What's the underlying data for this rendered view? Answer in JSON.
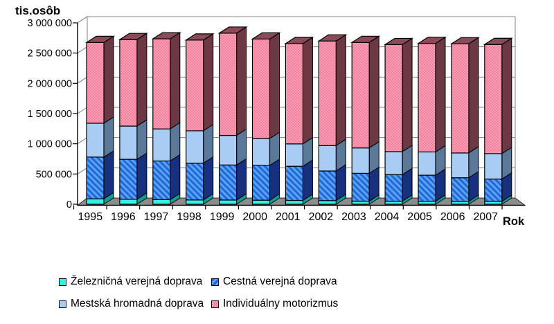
{
  "page": {
    "background": "#FFFFFF"
  },
  "chart_data": {
    "type": "bar",
    "stacked": true,
    "three_d": true,
    "title": "",
    "ylabel": "tis.osôb",
    "xlabel": "Rok",
    "ylim": [
      0,
      3000000
    ],
    "ytick_step": 500000,
    "y_tick_labels": [
      "0",
      "500 000",
      "1 000 000",
      "1 500 000",
      "2 000 000",
      "2 500 000",
      "3 000 000"
    ],
    "categories": [
      "1995",
      "1996",
      "1997",
      "1998",
      "1999",
      "2000",
      "2001",
      "2002",
      "2003",
      "2004",
      "2005",
      "2006",
      "2007"
    ],
    "series": [
      {
        "key": "railway",
        "name": "Železničná verejná doprava",
        "values": [
          90000,
          83000,
          76000,
          70000,
          69000,
          67000,
          63000,
          60000,
          51000,
          50000,
          50000,
          48000,
          47000
        ]
      },
      {
        "key": "bus",
        "name": "Cestná verejná doprava",
        "values": [
          690000,
          660000,
          640000,
          610000,
          580000,
          575000,
          565000,
          490000,
          460000,
          440000,
          430000,
          390000,
          370000
        ]
      },
      {
        "key": "urban",
        "name": "Mestská hromadná doprava",
        "values": [
          560000,
          550000,
          530000,
          535000,
          490000,
          445000,
          370000,
          420000,
          420000,
          380000,
          385000,
          410000,
          420000
        ]
      },
      {
        "key": "individual",
        "name": "Individuálny motorizmus",
        "values": [
          1335000,
          1430000,
          1490000,
          1500000,
          1690000,
          1645000,
          1660000,
          1730000,
          1745000,
          1770000,
          1795000,
          1805000,
          1805000
        ]
      }
    ],
    "legend_position": "bottom",
    "grid": true
  },
  "colors": {
    "railway": {
      "front": "#35F2E2",
      "side": "#0E9E94"
    },
    "bus": {
      "front": "#2B62D9",
      "stripe": "#4FA8F0",
      "side": "#16307E"
    },
    "urban": {
      "front": "#A9CCF4",
      "side": "#5C7898"
    },
    "individual": {
      "front": "#FA9FB4",
      "checker": "#F5809E",
      "side": "#6B3844",
      "top": "#8A4A58"
    },
    "grid_line": "#808080",
    "floor": "#8C8C8C",
    "axis": "#000000"
  }
}
